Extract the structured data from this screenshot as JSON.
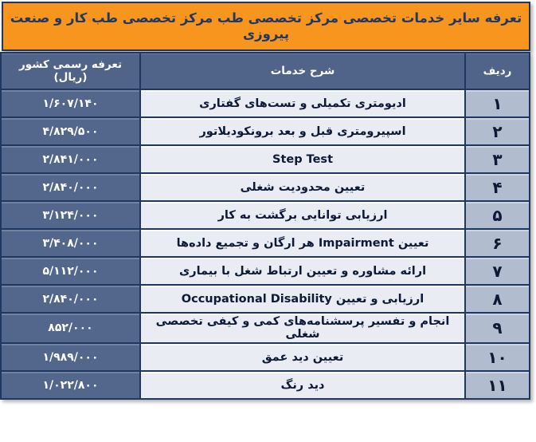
{
  "title": "تعرفه سایر خدمات تخصصی مرکز تخصصی طب مرکز تخصصی طب کار و صنعت پیروزی",
  "colors": {
    "accent_orange": "#F7951E",
    "header_blue": "#50648A",
    "tariff_cell_blue": "#53678D",
    "row_number_bg": "#B2BCCF",
    "cell_light": "#E9EDF3",
    "border_navy": "#1E3862",
    "title_text_navy": "#1F3864"
  },
  "table": {
    "headers": {
      "row": "ردیف",
      "service": "شرح خدمات",
      "tariff": "تعرفه رسمی کشور (ریال)"
    },
    "rows": [
      {
        "num": "۱",
        "service": "ادیومتری تکمیلی و تست‌های گفتاری",
        "tariff": "۱/۶۰۷/۱۴۰"
      },
      {
        "num": "۲",
        "service": "اسپیرومتری قبل و بعد برونکودیلاتور",
        "tariff": "۴/۸۲۹/۵۰۰"
      },
      {
        "num": "۳",
        "service": "Step Test",
        "tariff": "۲/۸۴۱/۰۰۰"
      },
      {
        "num": "۴",
        "service": "تعیین محدودیت شغلی",
        "tariff": "۲/۸۴۰/۰۰۰"
      },
      {
        "num": "۵",
        "service": "ارزیابی توانایی برگشت به کار",
        "tariff": "۳/۱۲۴/۰۰۰"
      },
      {
        "num": "۶",
        "service": "تعیین Impairment هر ارگان و تجمیع داده‌ها",
        "tariff": "۳/۴۰۸/۰۰۰"
      },
      {
        "num": "۷",
        "service": "ارائه مشاوره و تعیین ارتباط شغل با بیماری",
        "tariff": "۵/۱۱۲/۰۰۰"
      },
      {
        "num": "۸",
        "service": "ارزیابی و تعیین Occupational Disability",
        "tariff": "۲/۸۴۰/۰۰۰"
      },
      {
        "num": "۹",
        "service": "انجام و تفسیر پرسشنامه‌های کمی و کیفی تخصصی شغلی",
        "tariff": "۸۵۲/۰۰۰"
      },
      {
        "num": "۱۰",
        "service": "تعیین دید عمق",
        "tariff": "۱/۹۸۹/۰۰۰"
      },
      {
        "num": "۱۱",
        "service": "دید رنگ",
        "tariff": "۱/۰۲۲/۸۰۰"
      }
    ]
  }
}
